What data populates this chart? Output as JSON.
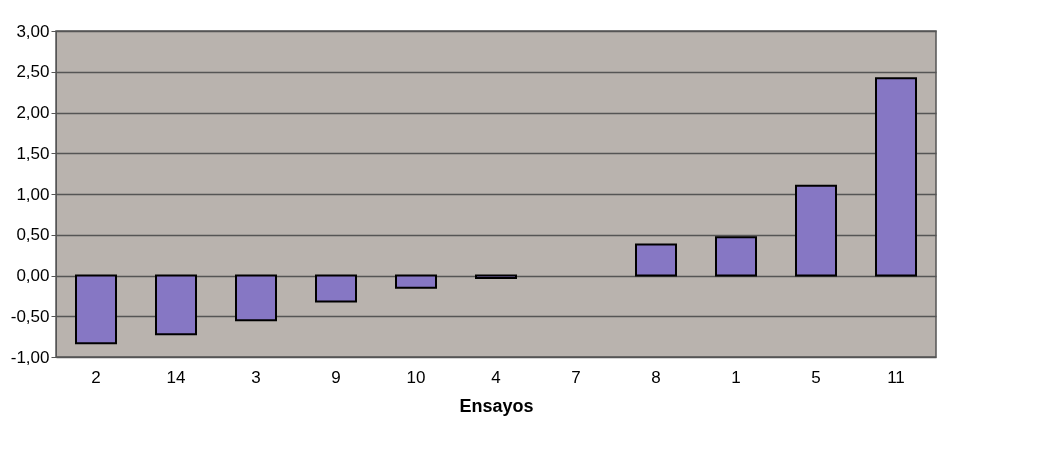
{
  "chart_data": {
    "type": "bar",
    "xlabel": "Ensayos",
    "categories": [
      "2",
      "14",
      "3",
      "9",
      "10",
      "4",
      "7",
      "8",
      "1",
      "5",
      "11"
    ],
    "values": [
      -0.83,
      -0.72,
      -0.55,
      -0.32,
      -0.15,
      -0.03,
      null,
      0.38,
      0.47,
      1.1,
      2.42
    ],
    "color": "#8677c4",
    "ylim": [
      -1,
      3
    ],
    "yticks": [
      {
        "value": -1,
        "label": "-1,00"
      },
      {
        "value": -0.5,
        "label": "-0,50"
      },
      {
        "value": 0,
        "label": "0,00"
      },
      {
        "value": 0.5,
        "label": "0,50"
      },
      {
        "value": 1,
        "label": "1,00"
      },
      {
        "value": 1.5,
        "label": "1,50"
      },
      {
        "value": 2,
        "label": "2,00"
      },
      {
        "value": 2.5,
        "label": "2,50"
      },
      {
        "value": 3,
        "label": "3,00"
      }
    ],
    "grid": "y"
  }
}
